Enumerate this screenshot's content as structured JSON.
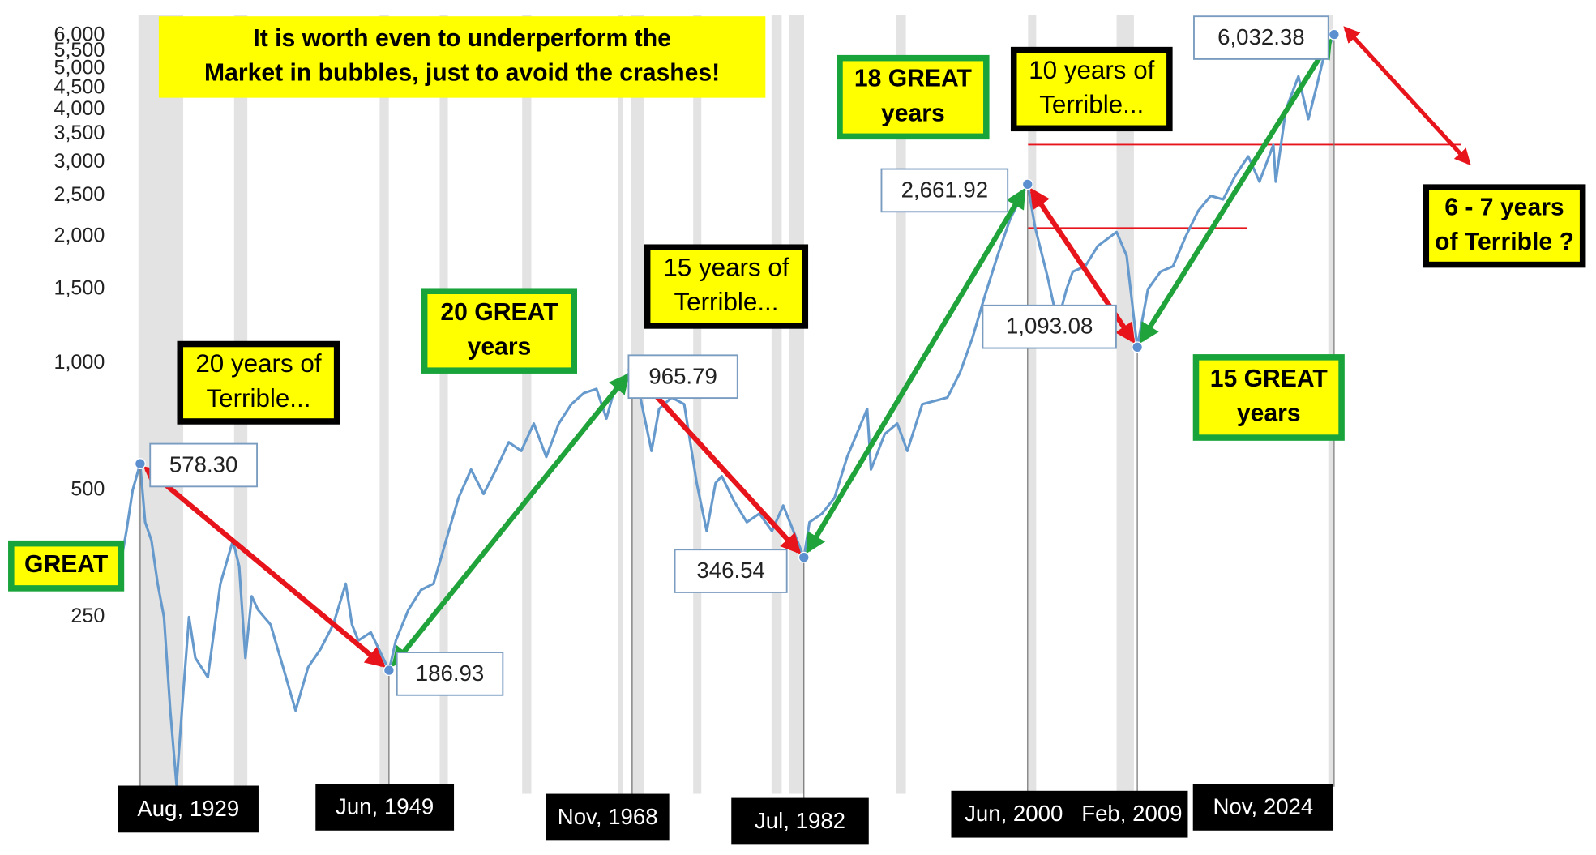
{
  "chart_data": {
    "type": "line",
    "log_scale": true,
    "grid": false,
    "xlim": [
      1928,
      2025.2
    ],
    "ylim": [
      90,
      6700
    ],
    "yticks": [
      250,
      500,
      {
        "value": 1000,
        "label": "1,000"
      },
      {
        "value": 1500,
        "label": "1,500"
      },
      {
        "value": 2000,
        "label": "2,000"
      },
      {
        "value": 2500,
        "label": "2,500"
      },
      {
        "value": 3000,
        "label": "3,000"
      },
      {
        "value": 3500,
        "label": "3,500"
      },
      {
        "value": 4000,
        "label": "4,000"
      },
      {
        "value": 4500,
        "label": "4,500"
      },
      {
        "value": 5000,
        "label": "5,000"
      },
      {
        "value": 5500,
        "label": "5,500"
      },
      {
        "value": 6000,
        "label": "6,000"
      }
    ],
    "color": "#6699cc",
    "x": [
      1928,
      1928.5,
      1929,
      1929.6,
      1930,
      1930.5,
      1931,
      1931.5,
      1932,
      1932.5,
      1933,
      1933.5,
      1934,
      1935,
      1936,
      1937,
      1937.5,
      1938,
      1938.5,
      1939,
      1940,
      1941,
      1942,
      1943,
      1944,
      1945,
      1946,
      1946.5,
      1947,
      1948,
      1949.45,
      1950,
      1951,
      1952,
      1953,
      1954,
      1955,
      1956,
      1957,
      1958,
      1959,
      1960,
      1961,
      1962,
      1963,
      1964,
      1965,
      1966,
      1966.8,
      1967.5,
      1968.85,
      1969.5,
      1970.4,
      1971,
      1972,
      1973,
      1974,
      1974.8,
      1975.5,
      1976,
      1977,
      1978,
      1979,
      1980,
      1980.9,
      1982.55,
      1983,
      1984,
      1985,
      1986,
      1987.6,
      1987.9,
      1989,
      1990,
      1990.8,
      1992,
      1994,
      1995,
      1996,
      1997,
      1998,
      1999,
      2000.4,
      2001,
      2002,
      2002.8,
      2003.5,
      2004,
      2005,
      2006,
      2007.5,
      2008.3,
      2009.15,
      2010,
      2011,
      2012,
      2013,
      2014,
      2015,
      2016,
      2017,
      2018,
      2018.9,
      2020,
      2020.2,
      2021,
      2022,
      2022.8,
      2023.5,
      2024,
      2024.85
    ],
    "values": [
      330,
      400,
      500,
      578.3,
      420,
      380,
      300,
      250,
      150,
      100,
      160,
      250,
      200,
      180,
      300,
      380,
      330,
      200,
      280,
      260,
      240,
      190,
      150,
      190,
      210,
      240,
      300,
      240,
      220,
      230,
      186.93,
      220,
      260,
      290,
      300,
      380,
      480,
      560,
      490,
      560,
      650,
      620,
      720,
      600,
      720,
      800,
      850,
      870,
      740,
      880,
      965.79,
      830,
      620,
      780,
      830,
      800,
      520,
      400,
      520,
      540,
      470,
      420,
      440,
      400,
      460,
      346.54,
      420,
      440,
      480,
      600,
      780,
      560,
      680,
      720,
      620,
      800,
      830,
      950,
      1150,
      1450,
      1800,
      2200,
      2661.92,
      2100,
      1600,
      1250,
      1500,
      1650,
      1700,
      1900,
      2050,
      1800,
      1093.08,
      1500,
      1650,
      1700,
      2000,
      2300,
      2500,
      2450,
      2800,
      3100,
      2700,
      3300,
      2700,
      4000,
      4800,
      3800,
      4600,
      5300,
      6032.38
    ],
    "callouts": [
      {
        "label": "Aug, 1929",
        "x": 1929.6,
        "value": 578.3,
        "value_label": "578.30"
      },
      {
        "label": "Jun, 1949",
        "x": 1949.45,
        "value": 186.93,
        "value_label": "186.93"
      },
      {
        "label": "Nov, 1968",
        "x": 1968.85,
        "value": 965.79,
        "value_label": "965.79"
      },
      {
        "label": "Jul, 1982",
        "x": 1982.55,
        "value": 346.54,
        "value_label": "346.54"
      },
      {
        "label": "Jun, 2000",
        "x": 2000.4,
        "value": 2661.92,
        "value_label": "2,661.92"
      },
      {
        "label": "Feb, 2009",
        "x": 2009.15,
        "value": 1093.08,
        "value_label": "1,093.08"
      },
      {
        "label": "Nov, 2024",
        "x": 2024.85,
        "value": 6032.38,
        "value_label": "6,032.38"
      }
    ],
    "arrow_colors": {
      "rise": "#1fa33a",
      "fall": "#e8141c"
    },
    "annotations": [
      {
        "lines": [
          "It is worth even to underperform the",
          "Market in bubbles, just to avoid the crashes!"
        ],
        "bold": true,
        "border": "#ffff00"
      },
      {
        "lines": [
          "20 years of",
          "Terrible..."
        ],
        "bold": false,
        "border": "#000000"
      },
      {
        "lines": [
          "GREAT"
        ],
        "bold": true,
        "border": "#19a33b"
      },
      {
        "lines": [
          "20 GREAT",
          "years"
        ],
        "bold": true,
        "border": "#19a33b"
      },
      {
        "lines": [
          "15 years of",
          "Terrible..."
        ],
        "bold": false,
        "border": "#000000"
      },
      {
        "lines": [
          "18 GREAT",
          "years"
        ],
        "bold": true,
        "border": "#19a33b"
      },
      {
        "lines": [
          "10 years of",
          "Terrible..."
        ],
        "bold": false,
        "border": "#000000"
      },
      {
        "lines": [
          "15 GREAT",
          "years"
        ],
        "bold": true,
        "border": "#19a33b"
      },
      {
        "lines": [
          "6 - 7 years",
          "of  Terrible ?"
        ],
        "bold": true,
        "border": "#000000"
      }
    ]
  }
}
